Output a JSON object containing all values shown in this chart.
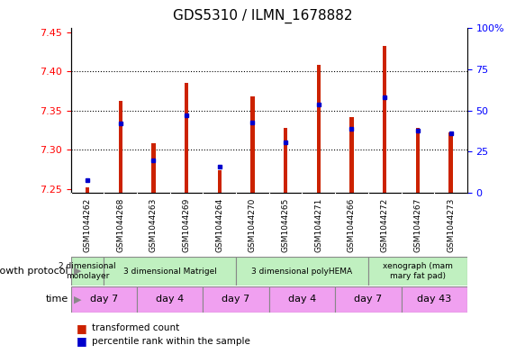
{
  "title": "GDS5310 / ILMN_1678882",
  "samples": [
    "GSM1044262",
    "GSM1044268",
    "GSM1044263",
    "GSM1044269",
    "GSM1044264",
    "GSM1044270",
    "GSM1044265",
    "GSM1044271",
    "GSM1044266",
    "GSM1044272",
    "GSM1044267",
    "GSM1044273"
  ],
  "transformed_counts": [
    7.252,
    7.362,
    7.308,
    7.385,
    7.274,
    7.368,
    7.328,
    7.408,
    7.342,
    7.432,
    7.328,
    7.322
  ],
  "percentile_ranks": [
    8,
    42,
    20,
    47,
    16,
    43,
    31,
    54,
    39,
    58,
    38,
    36
  ],
  "ylim_left": [
    7.245,
    7.455
  ],
  "ylim_right": [
    0,
    100
  ],
  "yticks_left": [
    7.25,
    7.3,
    7.35,
    7.4,
    7.45
  ],
  "yticks_right": [
    0,
    25,
    50,
    75,
    100
  ],
  "yticks_right_labels": [
    "0",
    "25",
    "50",
    "75",
    "100%"
  ],
  "bar_color": "#cc2200",
  "dot_color": "#0000cc",
  "bar_width": 0.12,
  "growth_protocol_groups": [
    {
      "label": "2 dimensional\nmonolayer",
      "start": 0,
      "end": 1
    },
    {
      "label": "3 dimensional Matrigel",
      "start": 1,
      "end": 5
    },
    {
      "label": "3 dimensional polyHEMA",
      "start": 5,
      "end": 9
    },
    {
      "label": "xenograph (mam\nmary fat pad)",
      "start": 9,
      "end": 12
    }
  ],
  "time_groups": [
    {
      "label": "day 7",
      "start": 0,
      "end": 2
    },
    {
      "label": "day 4",
      "start": 2,
      "end": 4
    },
    {
      "label": "day 7",
      "start": 4,
      "end": 6
    },
    {
      "label": "day 4",
      "start": 6,
      "end": 8
    },
    {
      "label": "day 7",
      "start": 8,
      "end": 10
    },
    {
      "label": "day 43",
      "start": 10,
      "end": 12
    }
  ],
  "gp_color": "#c0f0c0",
  "time_color": "#f0a0f0",
  "xtick_bg": "#d0d0d0",
  "legend_bar_label": "transformed count",
  "legend_dot_label": "percentile rank within the sample",
  "label_gp": "growth protocol",
  "label_time": "time"
}
